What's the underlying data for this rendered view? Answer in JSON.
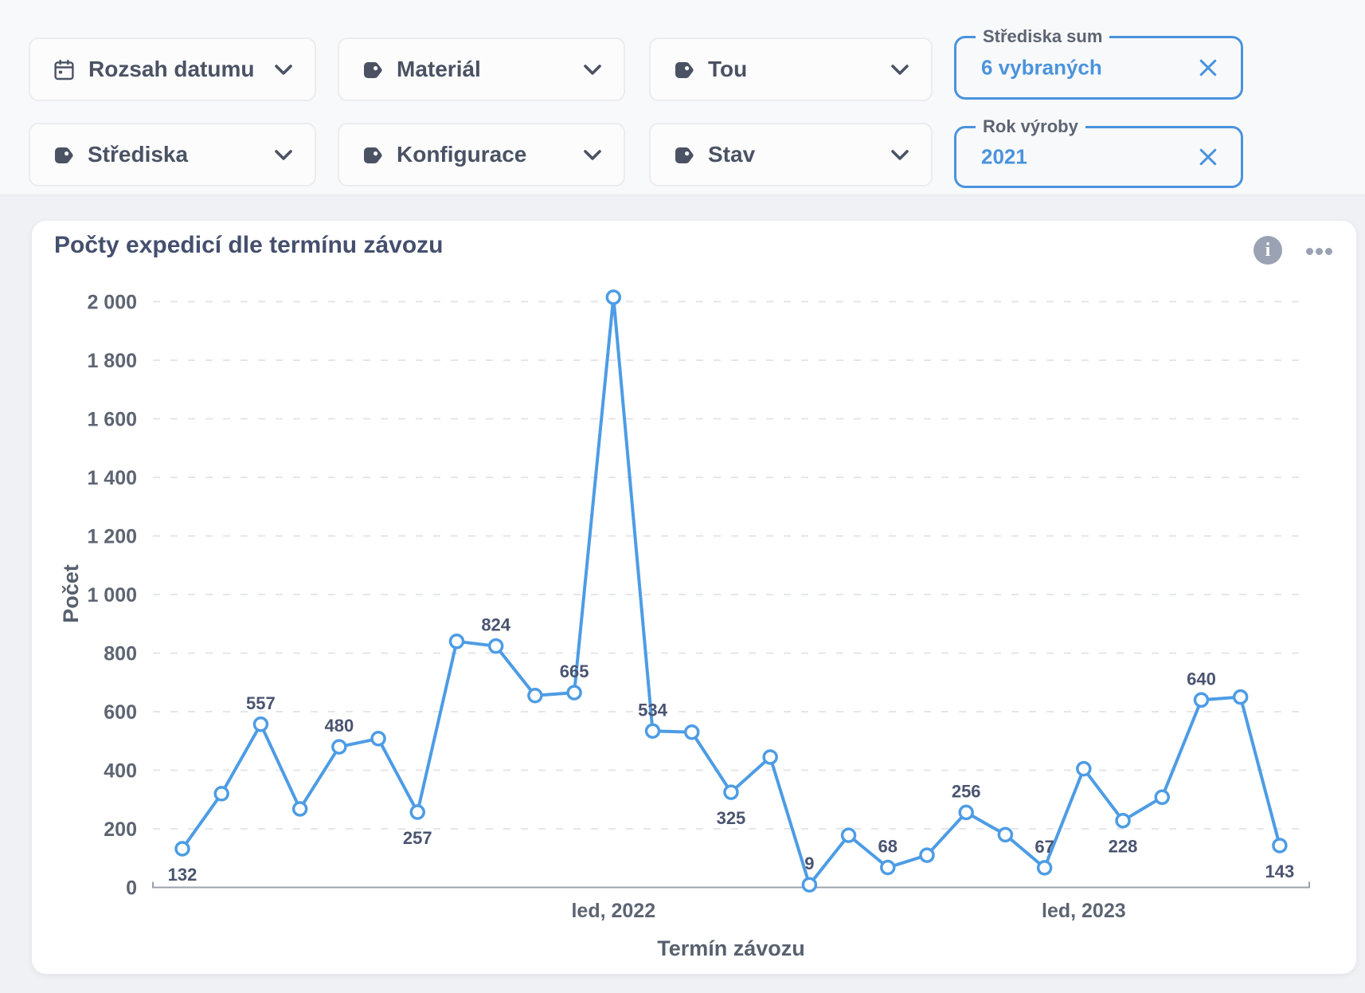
{
  "page": {
    "topbar_background": "#f8f9fa",
    "content_background": "#f0f1f4",
    "accent_color": "#4a93dd"
  },
  "filters": {
    "dropdowns": [
      {
        "label": "Rozsah datumu",
        "icon": "calendar-icon"
      },
      {
        "label": "Materiál",
        "icon": "tag-icon"
      },
      {
        "label": "Tou",
        "icon": "tag-icon"
      },
      {
        "label": "Střediska",
        "icon": "tag-icon"
      },
      {
        "label": "Konfigurace",
        "icon": "tag-icon"
      },
      {
        "label": "Stav",
        "icon": "tag-icon"
      }
    ],
    "active": [
      {
        "label": "Střediska sum",
        "value": "6 vybraných"
      },
      {
        "label": "Rok výroby",
        "value": "2021"
      }
    ]
  },
  "card": {
    "title": "Počty expedicí dle termínu závozu"
  },
  "icons": {
    "info_glyph": "i"
  },
  "chart_data": {
    "type": "line",
    "title": "Počty expedicí dle termínu závozu",
    "xlabel": "Termín závozu",
    "ylabel": "Počet",
    "ylim": [
      0,
      2000
    ],
    "grid": "dashed-horizontal",
    "legend": "none",
    "line_color": "#4d9ce5",
    "y_ticks": [
      {
        "value": 0,
        "label": "0"
      },
      {
        "value": 200,
        "label": "200"
      },
      {
        "value": 400,
        "label": "400"
      },
      {
        "value": 600,
        "label": "600"
      },
      {
        "value": 800,
        "label": "800"
      },
      {
        "value": 1000,
        "label": "1 000"
      },
      {
        "value": 1200,
        "label": "1 200"
      },
      {
        "value": 1400,
        "label": "1 400"
      },
      {
        "value": 1600,
        "label": "1 600"
      },
      {
        "value": 1800,
        "label": "1 800"
      },
      {
        "value": 2000,
        "label": "2 000"
      }
    ],
    "x_ticks": [
      {
        "index": 11,
        "label": "led, 2022"
      },
      {
        "index": 23,
        "label": "led, 2023"
      }
    ],
    "points": [
      {
        "value": 132,
        "label": "132",
        "label_pos": "below"
      },
      {
        "value": 320
      },
      {
        "value": 557,
        "label": "557",
        "label_pos": "above"
      },
      {
        "value": 268
      },
      {
        "value": 480,
        "label": "480",
        "label_pos": "above"
      },
      {
        "value": 508
      },
      {
        "value": 257,
        "label": "257",
        "label_pos": "below"
      },
      {
        "value": 840
      },
      {
        "value": 824,
        "label": "824",
        "label_pos": "above"
      },
      {
        "value": 655
      },
      {
        "value": 665,
        "label": "665",
        "label_pos": "above"
      },
      {
        "value": 2015
      },
      {
        "value": 534,
        "label": "534",
        "label_pos": "above"
      },
      {
        "value": 530
      },
      {
        "value": 325,
        "label": "325",
        "label_pos": "below"
      },
      {
        "value": 445
      },
      {
        "value": 9,
        "label": "9",
        "label_pos": "above"
      },
      {
        "value": 178
      },
      {
        "value": 68,
        "label": "68",
        "label_pos": "above"
      },
      {
        "value": 110
      },
      {
        "value": 256,
        "label": "256",
        "label_pos": "above"
      },
      {
        "value": 180
      },
      {
        "value": 67,
        "label": "67",
        "label_pos": "above"
      },
      {
        "value": 405
      },
      {
        "value": 228,
        "label": "228",
        "label_pos": "below"
      },
      {
        "value": 308
      },
      {
        "value": 640,
        "label": "640",
        "label_pos": "above"
      },
      {
        "value": 650
      },
      {
        "value": 143,
        "label": "143",
        "label_pos": "below"
      }
    ]
  }
}
